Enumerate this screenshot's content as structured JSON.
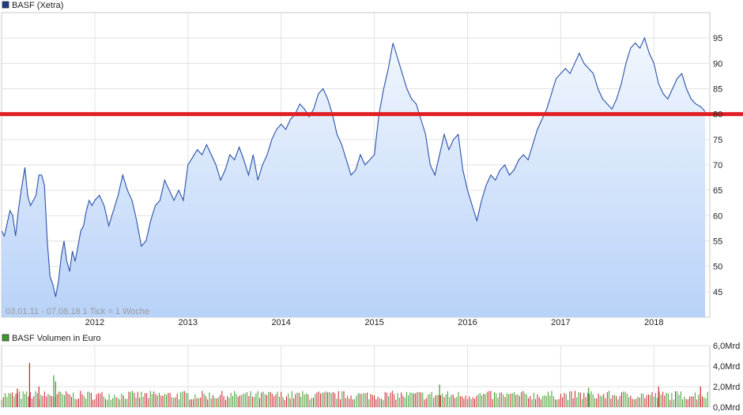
{
  "chart_data": [
    {
      "type": "line",
      "title": "BASF (Xetra)",
      "legend": "top-left",
      "grid": true,
      "colors": {
        "line": "#2a52a8",
        "fill_top": "#f2f7fe",
        "fill_bottom": "#b8d2f8",
        "marker": "#1d3c8c",
        "support": "#e01e24"
      },
      "ylim": [
        40,
        100
      ],
      "yticks": [
        45,
        50,
        55,
        60,
        65,
        70,
        75,
        80,
        85,
        90,
        95
      ],
      "xlim": [
        2011.0,
        2018.6
      ],
      "xticks": [
        2012,
        2013,
        2014,
        2015,
        2016,
        2017,
        2018
      ],
      "xtick_labels": [
        "2012",
        "2013",
        "2014",
        "2015",
        "2016",
        "2017",
        "2018"
      ],
      "info_text": "03.01.11 - 07.08.18   1 Tick = 1 Woche",
      "support_line": 80,
      "points": [
        [
          2011.0,
          57
        ],
        [
          2011.03,
          56
        ],
        [
          2011.06,
          58.5
        ],
        [
          2011.09,
          61
        ],
        [
          2011.12,
          60
        ],
        [
          2011.15,
          56
        ],
        [
          2011.18,
          61
        ],
        [
          2011.21,
          65
        ],
        [
          2011.25,
          69.5
        ],
        [
          2011.28,
          64
        ],
        [
          2011.31,
          62
        ],
        [
          2011.34,
          63
        ],
        [
          2011.37,
          64
        ],
        [
          2011.4,
          68
        ],
        [
          2011.43,
          68
        ],
        [
          2011.46,
          66
        ],
        [
          2011.49,
          55
        ],
        [
          2011.52,
          48
        ],
        [
          2011.55,
          46.5
        ],
        [
          2011.58,
          44
        ],
        [
          2011.61,
          47
        ],
        [
          2011.64,
          52
        ],
        [
          2011.67,
          55
        ],
        [
          2011.7,
          51
        ],
        [
          2011.73,
          49
        ],
        [
          2011.76,
          53
        ],
        [
          2011.79,
          51
        ],
        [
          2011.82,
          54
        ],
        [
          2011.85,
          57
        ],
        [
          2011.88,
          58
        ],
        [
          2011.91,
          61
        ],
        [
          2011.94,
          63
        ],
        [
          2011.97,
          62
        ],
        [
          2012.0,
          63
        ],
        [
          2012.05,
          64
        ],
        [
          2012.1,
          62
        ],
        [
          2012.15,
          58
        ],
        [
          2012.2,
          61
        ],
        [
          2012.25,
          64
        ],
        [
          2012.3,
          68
        ],
        [
          2012.35,
          65
        ],
        [
          2012.4,
          63
        ],
        [
          2012.45,
          59
        ],
        [
          2012.5,
          54
        ],
        [
          2012.55,
          55
        ],
        [
          2012.6,
          59
        ],
        [
          2012.65,
          62
        ],
        [
          2012.7,
          63
        ],
        [
          2012.75,
          67
        ],
        [
          2012.8,
          65
        ],
        [
          2012.85,
          63
        ],
        [
          2012.9,
          65
        ],
        [
          2012.95,
          63
        ],
        [
          2013.0,
          70
        ],
        [
          2013.05,
          71.5
        ],
        [
          2013.1,
          73
        ],
        [
          2013.15,
          72
        ],
        [
          2013.2,
          74
        ],
        [
          2013.25,
          72
        ],
        [
          2013.3,
          70
        ],
        [
          2013.35,
          67
        ],
        [
          2013.4,
          69
        ],
        [
          2013.45,
          72
        ],
        [
          2013.5,
          71
        ],
        [
          2013.55,
          73.5
        ],
        [
          2013.6,
          71
        ],
        [
          2013.65,
          68
        ],
        [
          2013.7,
          72
        ],
        [
          2013.75,
          67
        ],
        [
          2013.8,
          70
        ],
        [
          2013.85,
          72
        ],
        [
          2013.9,
          75
        ],
        [
          2013.95,
          77
        ],
        [
          2014.0,
          78
        ],
        [
          2014.05,
          77
        ],
        [
          2014.1,
          79
        ],
        [
          2014.15,
          80
        ],
        [
          2014.2,
          82
        ],
        [
          2014.25,
          81
        ],
        [
          2014.3,
          79.5
        ],
        [
          2014.35,
          81
        ],
        [
          2014.4,
          84
        ],
        [
          2014.45,
          85
        ],
        [
          2014.5,
          83
        ],
        [
          2014.55,
          80
        ],
        [
          2014.6,
          76
        ],
        [
          2014.65,
          74
        ],
        [
          2014.7,
          71
        ],
        [
          2014.75,
          68
        ],
        [
          2014.8,
          69
        ],
        [
          2014.85,
          72
        ],
        [
          2014.9,
          70
        ],
        [
          2014.95,
          71
        ],
        [
          2015.0,
          72
        ],
        [
          2015.05,
          80
        ],
        [
          2015.1,
          85
        ],
        [
          2015.15,
          89
        ],
        [
          2015.2,
          94
        ],
        [
          2015.25,
          91
        ],
        [
          2015.3,
          88
        ],
        [
          2015.35,
          85
        ],
        [
          2015.4,
          83
        ],
        [
          2015.45,
          82
        ],
        [
          2015.5,
          79
        ],
        [
          2015.55,
          76
        ],
        [
          2015.6,
          70
        ],
        [
          2015.65,
          68
        ],
        [
          2015.7,
          72
        ],
        [
          2015.75,
          76
        ],
        [
          2015.8,
          73
        ],
        [
          2015.85,
          75
        ],
        [
          2015.9,
          76
        ],
        [
          2015.95,
          69
        ],
        [
          2016.0,
          65
        ],
        [
          2016.05,
          62
        ],
        [
          2016.1,
          59
        ],
        [
          2016.15,
          63
        ],
        [
          2016.2,
          66
        ],
        [
          2016.25,
          68
        ],
        [
          2016.3,
          67
        ],
        [
          2016.35,
          69
        ],
        [
          2016.4,
          70
        ],
        [
          2016.45,
          68
        ],
        [
          2016.5,
          69
        ],
        [
          2016.55,
          71
        ],
        [
          2016.6,
          72
        ],
        [
          2016.65,
          71
        ],
        [
          2016.7,
          74
        ],
        [
          2016.75,
          77
        ],
        [
          2016.8,
          79
        ],
        [
          2016.85,
          81
        ],
        [
          2016.9,
          84
        ],
        [
          2016.95,
          87
        ],
        [
          2017.0,
          88
        ],
        [
          2017.05,
          89
        ],
        [
          2017.1,
          88
        ],
        [
          2017.15,
          90
        ],
        [
          2017.2,
          92
        ],
        [
          2017.25,
          90
        ],
        [
          2017.3,
          89
        ],
        [
          2017.35,
          88
        ],
        [
          2017.4,
          85
        ],
        [
          2017.45,
          83
        ],
        [
          2017.5,
          82
        ],
        [
          2017.55,
          81
        ],
        [
          2017.6,
          83
        ],
        [
          2017.65,
          86
        ],
        [
          2017.7,
          90
        ],
        [
          2017.75,
          93
        ],
        [
          2017.8,
          94
        ],
        [
          2017.85,
          93
        ],
        [
          2017.9,
          95
        ],
        [
          2017.95,
          92
        ],
        [
          2018.0,
          90
        ],
        [
          2018.05,
          86
        ],
        [
          2018.1,
          84
        ],
        [
          2018.15,
          83
        ],
        [
          2018.2,
          85
        ],
        [
          2018.25,
          87
        ],
        [
          2018.3,
          88
        ],
        [
          2018.35,
          85
        ],
        [
          2018.4,
          83
        ],
        [
          2018.45,
          82
        ],
        [
          2018.5,
          81.5
        ],
        [
          2018.55,
          80.5
        ]
      ]
    },
    {
      "type": "bar",
      "title": "BASF Volumen in Euro",
      "legend": "top-left",
      "grid": true,
      "colors": {
        "up": "#3c9b2b",
        "down": "#c8202a"
      },
      "ylim": [
        0,
        6
      ],
      "yticks": [
        0,
        2,
        4,
        6
      ],
      "ytick_labels": [
        "0,0Mrd",
        "2,0Mrd",
        "4,0Mrd",
        "6,0Mrd"
      ],
      "xlim": [
        2011.0,
        2018.6
      ],
      "xticks": [
        2012,
        2013,
        2014,
        2015,
        2016,
        2017,
        2018
      ],
      "typical_range": [
        0.7,
        1.6
      ],
      "spikes": [
        {
          "x": 2011.17,
          "value": 1.8,
          "dir": "down"
        },
        {
          "x": 2011.3,
          "value": 4.3,
          "dir": "down"
        },
        {
          "x": 2011.4,
          "value": 2.0,
          "dir": "down"
        },
        {
          "x": 2011.56,
          "value": 3.1,
          "dir": "up"
        },
        {
          "x": 2011.58,
          "value": 2.5,
          "dir": "up"
        },
        {
          "x": 2015.7,
          "value": 2.2,
          "dir": "up"
        },
        {
          "x": 2017.3,
          "value": 1.9,
          "dir": "up"
        },
        {
          "x": 2018.05,
          "value": 2.0,
          "dir": "down"
        },
        {
          "x": 2018.5,
          "value": 2.0,
          "dir": "down"
        }
      ]
    }
  ]
}
